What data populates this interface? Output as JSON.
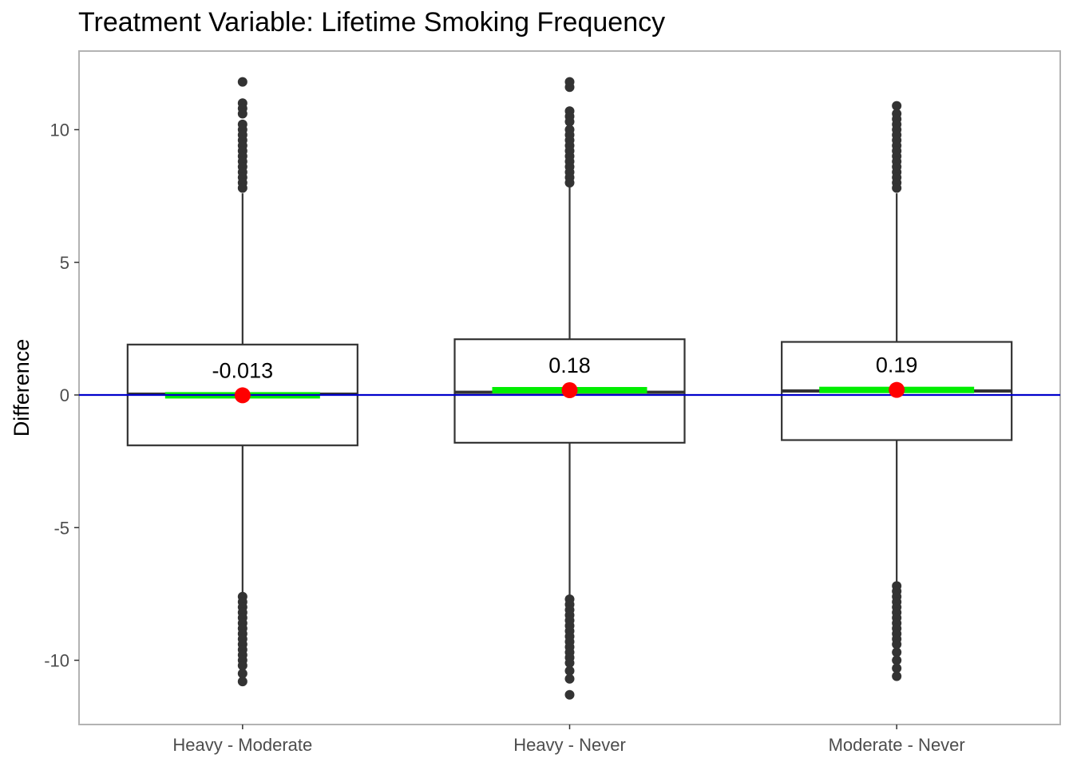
{
  "chart_data": {
    "type": "box",
    "title": "Treatment Variable: Lifetime Smoking Frequency",
    "xlabel": "",
    "ylabel": "Difference",
    "ylim": [
      -12.4,
      12.9
    ],
    "y_ticks": [
      10,
      5,
      0,
      -5,
      -10
    ],
    "y_tick_labels": [
      "10",
      "5",
      "0",
      "-5",
      "-10"
    ],
    "grid": false,
    "reference_line": {
      "y": 0,
      "color": "#0000cc"
    },
    "colors": {
      "box_outline": "#333333",
      "mean_point": "#ff0000",
      "mean_bar": "#00ee00",
      "outlier": "#333333",
      "reference_line": "#0000cc",
      "panel_border": "#b3b3b3"
    },
    "categories": [
      "Heavy - Moderate",
      "Heavy - Never",
      "Moderate - Never"
    ],
    "boxes": [
      {
        "category": "Heavy - Moderate",
        "q1": -1.9,
        "median": 0.03,
        "q3": 1.9,
        "whisker_low": -7.6,
        "whisker_high": 7.6,
        "mean": -0.013,
        "mean_label": "-0.013",
        "outliers": [
          11.8,
          11.0,
          10.8,
          10.6,
          10.2,
          10.0,
          9.8,
          9.6,
          9.4,
          9.2,
          9.0,
          8.8,
          8.6,
          8.4,
          8.2,
          8.0,
          7.8,
          -7.6,
          -7.8,
          -8.0,
          -8.2,
          -8.4,
          -8.6,
          -8.8,
          -9.0,
          -9.2,
          -9.4,
          -9.6,
          -9.8,
          -10.0,
          -10.2,
          -10.5,
          -10.8
        ]
      },
      {
        "category": "Heavy - Never",
        "q1": -1.8,
        "median": 0.1,
        "q3": 2.1,
        "whisker_low": -7.7,
        "whisker_high": 7.9,
        "mean": 0.18,
        "mean_label": "0.18",
        "outliers": [
          11.8,
          11.6,
          10.7,
          10.5,
          10.3,
          10.0,
          9.8,
          9.6,
          9.4,
          9.2,
          9.0,
          8.8,
          8.6,
          8.4,
          8.2,
          8.0,
          -7.7,
          -7.9,
          -8.1,
          -8.3,
          -8.5,
          -8.7,
          -8.9,
          -9.1,
          -9.3,
          -9.5,
          -9.7,
          -9.9,
          -10.1,
          -10.4,
          -10.7,
          -11.3
        ]
      },
      {
        "category": "Moderate - Never",
        "q1": -1.7,
        "median": 0.15,
        "q3": 2.0,
        "whisker_low": -7.2,
        "whisker_high": 7.6,
        "mean": 0.19,
        "mean_label": "0.19",
        "outliers": [
          10.9,
          10.6,
          10.4,
          10.2,
          10.0,
          9.8,
          9.6,
          9.4,
          9.2,
          9.0,
          8.8,
          8.6,
          8.4,
          8.2,
          8.0,
          7.8,
          -7.2,
          -7.4,
          -7.6,
          -7.8,
          -8.0,
          -8.2,
          -8.4,
          -8.6,
          -8.8,
          -9.0,
          -9.2,
          -9.4,
          -9.7,
          -10.0,
          -10.3,
          -10.6
        ]
      }
    ]
  }
}
